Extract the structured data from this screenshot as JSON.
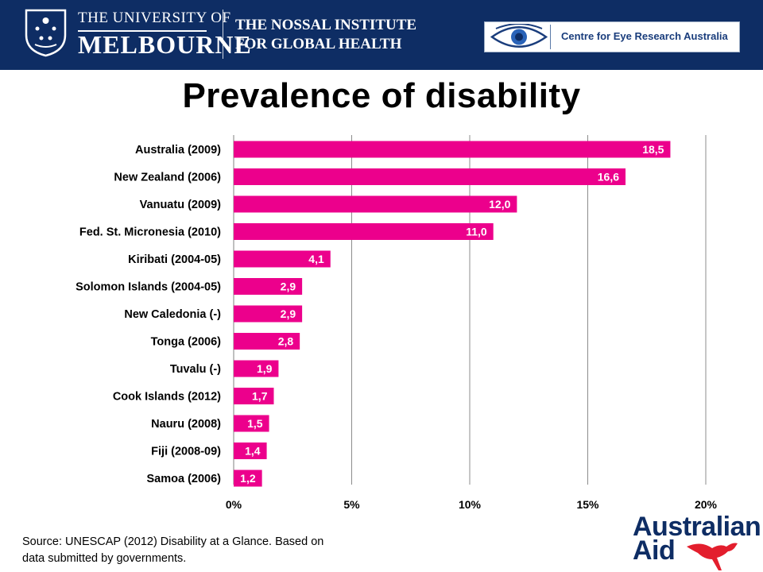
{
  "header": {
    "university_line1": "THE UNIVERSITY OF",
    "university_line2": "MELBOURNE",
    "nossal_line1": "THE NOSSAL INSTITUTE",
    "nossal_line2": "FOR GLOBAL HEALTH",
    "cera_text": "Centre for Eye Research Australia"
  },
  "slide": {
    "title": "Prevalence of disability",
    "source_line1": "Source: UNESCAP (2012) Disability at a Glance. Based on",
    "source_line2": "data submitted by governments."
  },
  "footer_logo": {
    "line1": "Australian",
    "line2": "Aid"
  },
  "chart_data": {
    "type": "bar",
    "orientation": "horizontal",
    "title": "Prevalence of disability",
    "xlabel": "",
    "ylabel": "",
    "categories": [
      "Australia (2009)",
      "New Zealand (2006)",
      "Vanuatu (2009)",
      "Fed. St. Micronesia (2010)",
      "Kiribati (2004-05)",
      "Solomon Islands (2004-05)",
      "New Caledonia (-)",
      "Tonga (2006)",
      "Tuvalu (-)",
      "Cook Islands (2012)",
      "Nauru (2008)",
      "Fiji (2008-09)",
      "Samoa (2006)"
    ],
    "values": [
      18.5,
      16.6,
      12.0,
      11.0,
      4.1,
      2.9,
      2.9,
      2.8,
      1.9,
      1.7,
      1.5,
      1.4,
      1.2
    ],
    "value_labels": [
      "18,5",
      "16,6",
      "12,0",
      "11,0",
      "4,1",
      "2,9",
      "2,9",
      "2,8",
      "1,9",
      "1,7",
      "1,5",
      "1,4",
      "1,2"
    ],
    "xlim": [
      0,
      20
    ],
    "xticks": [
      0,
      5,
      10,
      15,
      20
    ],
    "xtick_labels": [
      "0%",
      "5%",
      "10%",
      "15%",
      "20%"
    ],
    "grid": true,
    "legend": "none",
    "bar_color": "#ec008c"
  }
}
